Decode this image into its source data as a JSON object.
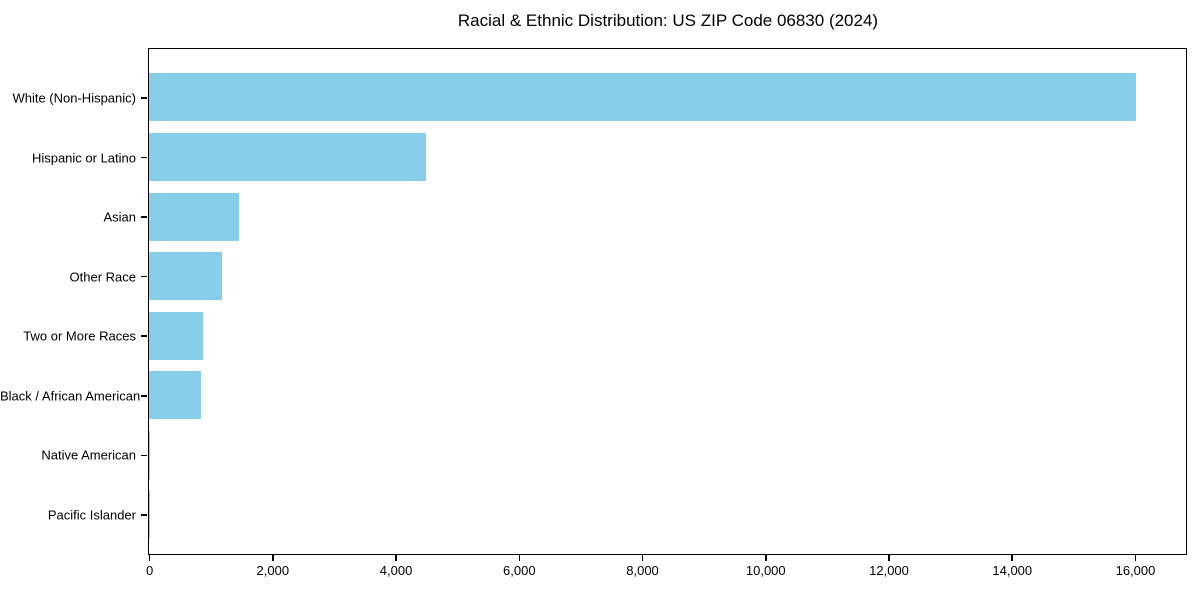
{
  "title": "Racial & Ethnic Distribution: US ZIP Code 06830 (2024)",
  "chart_data": {
    "type": "bar",
    "orientation": "horizontal",
    "title": "Racial & Ethnic Distribution: US ZIP Code 06830 (2024)",
    "categories": [
      "White (Non-Hispanic)",
      "Hispanic or Latino",
      "Asian",
      "Other Race",
      "Two or More Races",
      "Black / African American",
      "Native American",
      "Pacific Islander"
    ],
    "values": [
      16020,
      4500,
      1460,
      1180,
      880,
      840,
      20,
      5
    ],
    "xlabel": "",
    "ylabel": "",
    "xlim": [
      0,
      16810
    ],
    "xticks": [
      0,
      2000,
      4000,
      6000,
      8000,
      10000,
      12000,
      14000,
      16000
    ],
    "xtick_labels": [
      "0",
      "2,000",
      "4,000",
      "6,000",
      "8,000",
      "10,000",
      "12,000",
      "14,000",
      "16,000"
    ],
    "grid": false,
    "legend": false,
    "bar_color": "#87CEEB",
    "frame_color": "#000000",
    "text_color": "#000000",
    "background_color": "#ffffff"
  }
}
